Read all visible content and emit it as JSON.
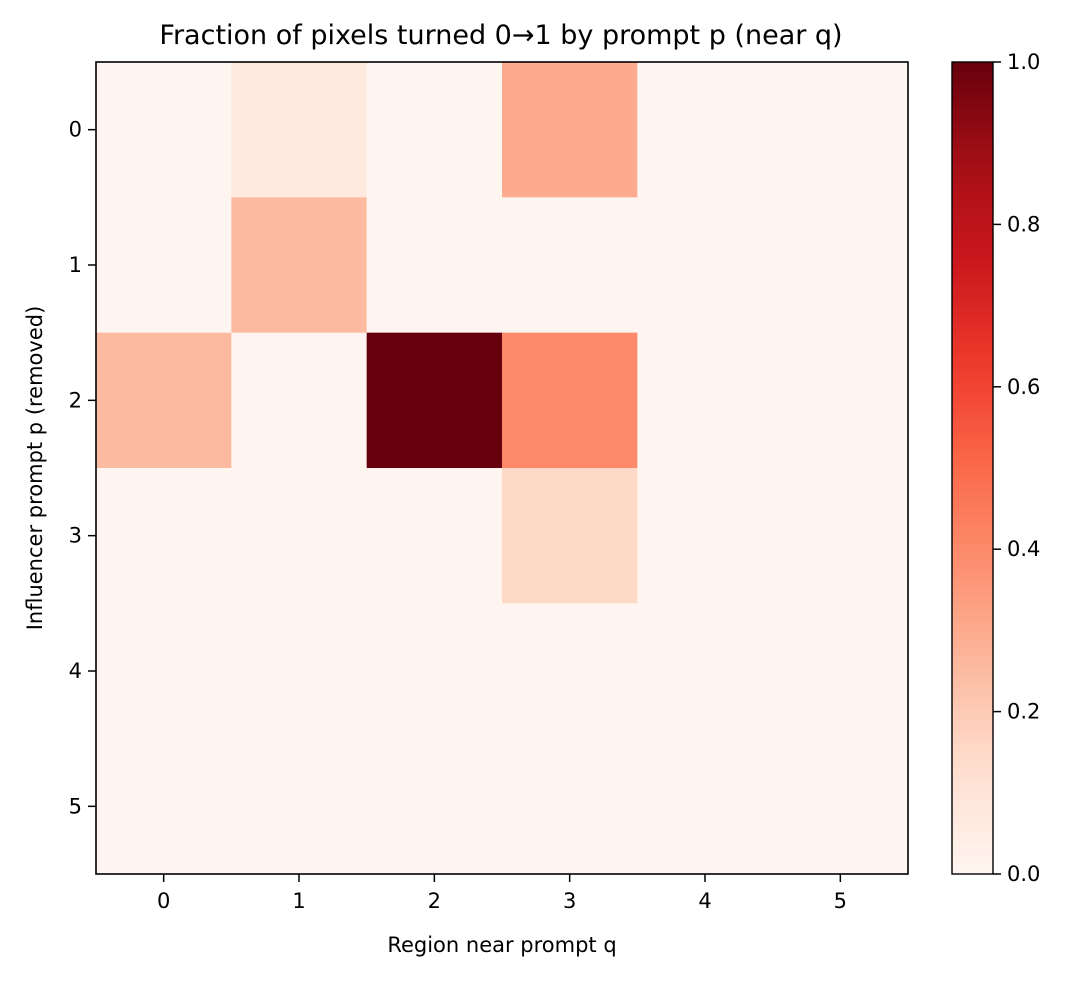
{
  "chart_data": {
    "type": "heatmap",
    "title": "Fraction of pixels turned 0→1 by prompt p (near q)",
    "xlabel": "Region near prompt q",
    "ylabel": "Influencer prompt p (removed)",
    "x_categories": [
      "0",
      "1",
      "2",
      "3",
      "4",
      "5"
    ],
    "y_categories": [
      "0",
      "1",
      "2",
      "3",
      "4",
      "5"
    ],
    "values": [
      [
        0.0,
        0.07,
        0.0,
        0.3,
        0.0,
        0.0
      ],
      [
        0.0,
        0.25,
        0.0,
        0.0,
        0.0,
        0.0
      ],
      [
        0.25,
        0.0,
        1.0,
        0.4,
        0.0,
        0.0
      ],
      [
        0.0,
        0.0,
        0.0,
        0.15,
        0.0,
        0.0
      ],
      [
        0.0,
        0.0,
        0.0,
        0.0,
        0.0,
        0.0
      ],
      [
        0.0,
        0.0,
        0.0,
        0.0,
        0.0,
        0.0
      ]
    ],
    "colormap": "Reds",
    "vmin": 0.0,
    "vmax": 1.0,
    "colorbar_ticks": [
      "0.0",
      "0.2",
      "0.4",
      "0.6",
      "0.8",
      "1.0"
    ],
    "grid": false,
    "colorbar_position": "right"
  }
}
